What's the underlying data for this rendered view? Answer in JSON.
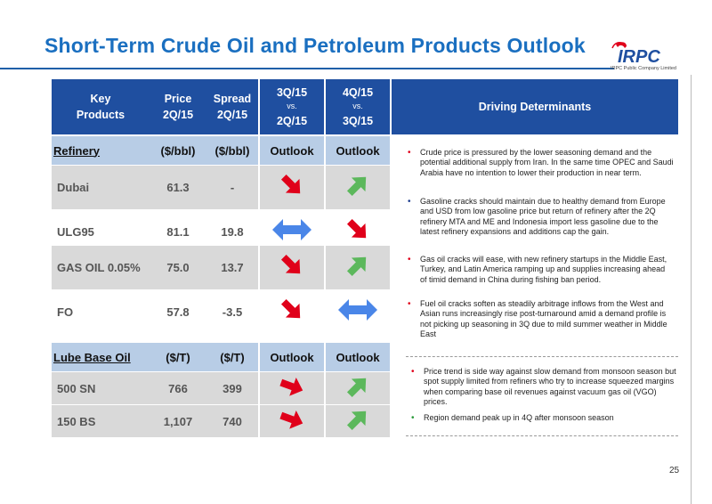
{
  "title": "Short-Term Crude Oil and Petroleum Products Outlook",
  "logo": {
    "text": "IRPC",
    "subtitle": "IRPC Public Company Limited"
  },
  "header": {
    "key_products": "Key Products",
    "price": "Price 2Q/15",
    "spread": "Spread 2Q/15",
    "q3_line1": "3Q/15",
    "q3_vs": "vs.",
    "q3_line2": "2Q/15",
    "q4_line1": "4Q/15",
    "q4_vs": "vs.",
    "q4_line2": "3Q/15",
    "determinants": "Driving Determinants"
  },
  "refinery": {
    "label": "Refinery",
    "price_unit": "($/bbl)",
    "spread_unit": "($/bbl)",
    "outlook3": "Outlook",
    "outlook4": "Outlook",
    "rows": [
      {
        "name": "Dubai",
        "price": "61.3",
        "spread": "-",
        "q3": "down",
        "q4": "up"
      },
      {
        "name": "ULG95",
        "price": "81.1",
        "spread": "19.8",
        "q3": "flat",
        "q4": "down"
      },
      {
        "name": "GAS OIL 0.05%",
        "price": "75.0",
        "spread": "13.7",
        "q3": "down",
        "q4": "up"
      },
      {
        "name": "FO",
        "price": "57.8",
        "spread": "-3.5",
        "q3": "down",
        "q4": "flat"
      }
    ]
  },
  "lube": {
    "label": "Lube Base Oil",
    "price_unit": "($/T)",
    "spread_unit": "($/T)",
    "outlook3": "Outlook",
    "outlook4": "Outlook",
    "rows": [
      {
        "name": "500 SN",
        "price": "766",
        "spread": "399",
        "q3": "right",
        "q4": "up"
      },
      {
        "name": "150 BS",
        "price": "1,107",
        "spread": "740",
        "q3": "right",
        "q4": "up"
      }
    ]
  },
  "determinants": {
    "refinery": [
      {
        "color": "#e0001a",
        "text": "Crude price is pressured by the lower seasoning demand and the potential additional supply from Iran. In the same time OPEC and Saudi Arabia have no intention to lower their production in near term."
      },
      {
        "color": "#1f3f90",
        "text": "Gasoline cracks should maintain due to healthy demand from Europe and USD from low gasoline price but return of refinery after the 2Q refinery MTA and ME and Indonesia import less gasoline due to the latest refinery expansions and additions cap the gain."
      },
      {
        "color": "#e0001a",
        "text": "Gas oil cracks will ease, with new refinery startups in the Middle East, Turkey, and Latin America ramping up and supplies increasing ahead of timid demand in China during fishing ban period."
      },
      {
        "color": "#e0001a",
        "text": "Fuel oil cracks soften as steadily arbitrage inflows from the West and Asian runs increasingly rise post-turnaround amid a demand profile is not picking up seasoning in 3Q due to mild summer weather in Middle East"
      }
    ],
    "lube": [
      {
        "color": "#e0001a",
        "text": "Price trend is side way against slow demand from monsoon season but spot supply limited from refiners who try to increase squeezed margins when comparing base oil revenues against vacuum gas oil (VGO) prices."
      },
      {
        "color": "#2a9a3a",
        "text": "Region demand peak up in 4Q after monsoon season"
      }
    ]
  },
  "colors": {
    "up": "#5cb85c",
    "down": "#e0001a",
    "flat": "#4a86e8",
    "header_bg": "#1f4fa0",
    "band_bg": "#b8cde6"
  },
  "page_number": "25"
}
